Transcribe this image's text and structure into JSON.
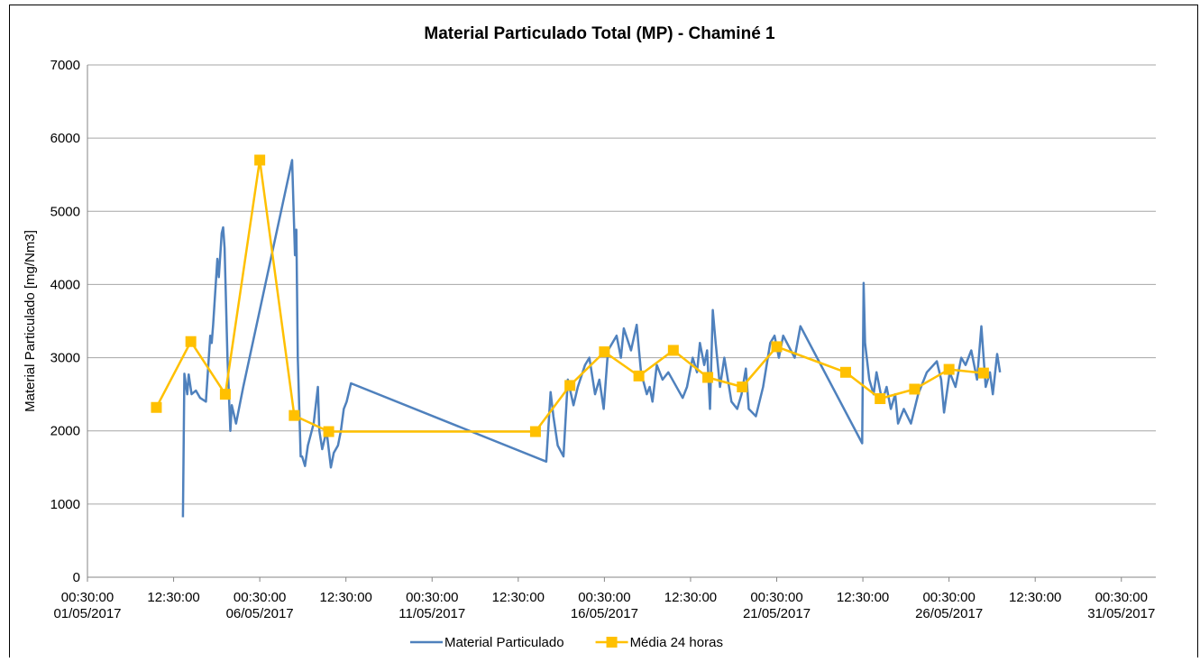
{
  "chart_data": {
    "type": "line",
    "title": "Material Particulado Total (MP) - Chaminé 1",
    "y_label": "Material Particulado [mg/Nm3]",
    "xlim": [
      "01/05/2017 00:30:00",
      "01/06/2017 00:30:00"
    ],
    "xticks": [
      {
        "value": "01/05/2017 00:30:00",
        "label": [
          "00:30:00",
          "01/05/2017"
        ]
      },
      {
        "value": "03/05/2017 12:30:00",
        "label": [
          "12:30:00"
        ]
      },
      {
        "value": "06/05/2017 00:30:00",
        "label": [
          "00:30:00",
          "06/05/2017"
        ]
      },
      {
        "value": "08/05/2017 12:30:00",
        "label": [
          "12:30:00"
        ]
      },
      {
        "value": "11/05/2017 00:30:00",
        "label": [
          "00:30:00",
          "11/05/2017"
        ]
      },
      {
        "value": "13/05/2017 12:30:00",
        "label": [
          "12:30:00"
        ]
      },
      {
        "value": "16/05/2017 00:30:00",
        "label": [
          "00:30:00",
          "16/05/2017"
        ]
      },
      {
        "value": "18/05/2017 12:30:00",
        "label": [
          "12:30:00"
        ]
      },
      {
        "value": "21/05/2017 00:30:00",
        "label": [
          "00:30:00",
          "21/05/2017"
        ]
      },
      {
        "value": "23/05/2017 12:30:00",
        "label": [
          "12:30:00"
        ]
      },
      {
        "value": "26/05/2017 00:30:00",
        "label": [
          "00:30:00",
          "26/05/2017"
        ]
      },
      {
        "value": "28/05/2017 12:30:00",
        "label": [
          "12:30:00"
        ]
      },
      {
        "value": "31/05/2017 00:30:00",
        "label": [
          "00:30:00",
          "31/05/2017"
        ]
      }
    ],
    "ylim": [
      0,
      7000
    ],
    "yticks": [
      0,
      1000,
      2000,
      3000,
      4000,
      5000,
      6000,
      7000
    ],
    "grid": true,
    "legend": "bottom",
    "series": [
      {
        "name": "Material Particulado",
        "color": "#4f81bd",
        "marker": "none",
        "x": [
          "03/05/2017 19:00:00",
          "03/05/2017 20:00:00",
          "03/05/2017 22:00:00",
          "03/05/2017 23:00:00",
          "04/05/2017 01:00:00",
          "04/05/2017 04:00:00",
          "04/05/2017 07:00:00",
          "04/05/2017 11:00:00",
          "04/05/2017 14:00:00",
          "04/05/2017 15:00:00",
          "04/05/2017 16:00:00",
          "04/05/2017 19:00:00",
          "04/05/2017 20:00:00",
          "04/05/2017 22:00:00",
          "04/05/2017 23:00:00",
          "05/05/2017 00:00:00",
          "05/05/2017 02:00:00",
          "05/05/2017 04:00:00",
          "05/05/2017 05:00:00",
          "05/05/2017 08:00:00",
          "05/05/2017 10:00:00",
          "05/05/2017 13:00:00",
          "06/05/2017 23:00:00",
          "07/05/2017 01:00:00",
          "07/05/2017 02:00:00",
          "07/05/2017 03:00:00",
          "07/05/2017 05:00:00",
          "07/05/2017 06:00:00",
          "07/05/2017 08:00:00",
          "07/05/2017 10:00:00",
          "07/05/2017 12:00:00",
          "07/05/2017 14:00:00",
          "07/05/2017 17:00:00",
          "07/05/2017 18:00:00",
          "07/05/2017 20:00:00",
          "07/05/2017 23:00:00",
          "08/05/2017 02:00:00",
          "08/05/2017 04:00:00",
          "08/05/2017 07:00:00",
          "08/05/2017 09:00:00",
          "08/05/2017 11:00:00",
          "08/05/2017 13:00:00",
          "08/05/2017 16:00:00",
          "14/05/2017 08:00:00",
          "14/05/2017 11:00:00",
          "14/05/2017 13:00:00",
          "14/05/2017 16:00:00",
          "14/05/2017 20:00:00",
          "14/05/2017 23:00:00",
          "15/05/2017 03:00:00",
          "15/05/2017 06:00:00",
          "15/05/2017 11:00:00",
          "15/05/2017 14:00:00",
          "15/05/2017 18:00:00",
          "15/05/2017 21:00:00",
          "16/05/2017 00:00:00",
          "16/05/2017 03:00:00",
          "16/05/2017 09:00:00",
          "16/05/2017 12:00:00",
          "16/05/2017 14:00:00",
          "16/05/2017 19:00:00",
          "16/05/2017 23:00:00",
          "17/05/2017 02:00:00",
          "17/05/2017 06:00:00",
          "17/05/2017 08:00:00",
          "17/05/2017 10:00:00",
          "17/05/2017 13:00:00",
          "17/05/2017 17:00:00",
          "17/05/2017 21:00:00",
          "18/05/2017 07:00:00",
          "18/05/2017 10:00:00",
          "18/05/2017 14:00:00",
          "18/05/2017 17:00:00",
          "18/05/2017 19:00:00",
          "18/05/2017 22:00:00",
          "19/05/2017 00:00:00",
          "19/05/2017 02:00:00",
          "19/05/2017 04:00:00",
          "19/05/2017 06:00:00",
          "19/05/2017 09:00:00",
          "19/05/2017 12:00:00",
          "19/05/2017 17:00:00",
          "19/05/2017 21:00:00",
          "20/05/2017 00:00:00",
          "20/05/2017 03:00:00",
          "20/05/2017 05:00:00",
          "20/05/2017 10:00:00",
          "20/05/2017 15:00:00",
          "20/05/2017 20:00:00",
          "20/05/2017 23:00:00",
          "21/05/2017 02:00:00",
          "21/05/2017 05:00:00",
          "21/05/2017 13:00:00",
          "21/05/2017 17:00:00",
          "23/05/2017 12:00:00",
          "23/05/2017 13:00:00",
          "23/05/2017 14:00:00",
          "23/05/2017 17:00:00",
          "23/05/2017 20:00:00",
          "23/05/2017 22:00:00",
          "24/05/2017 02:00:00",
          "24/05/2017 05:00:00",
          "24/05/2017 08:00:00",
          "24/05/2017 11:00:00",
          "24/05/2017 13:00:00",
          "24/05/2017 17:00:00",
          "24/05/2017 22:00:00",
          "25/05/2017 03:00:00",
          "25/05/2017 09:00:00",
          "25/05/2017 16:00:00",
          "25/05/2017 19:00:00",
          "25/05/2017 21:00:00",
          "26/05/2017 01:00:00",
          "26/05/2017 05:00:00",
          "26/05/2017 09:00:00",
          "26/05/2017 12:00:00",
          "26/05/2017 16:00:00",
          "26/05/2017 20:00:00",
          "26/05/2017 23:00:00",
          "27/05/2017 02:00:00",
          "27/05/2017 05:00:00",
          "27/05/2017 07:00:00",
          "27/05/2017 10:00:00",
          "27/05/2017 12:00:00"
        ],
        "values": [
          820,
          2780,
          2500,
          2770,
          2500,
          2550,
          2450,
          2400,
          3300,
          3200,
          3450,
          4350,
          4100,
          4700,
          4780,
          4500,
          3000,
          2000,
          2350,
          2100,
          2300,
          2600,
          5700,
          4400,
          4750,
          3000,
          1650,
          1650,
          1520,
          1800,
          1950,
          2100,
          2600,
          2000,
          1750,
          2000,
          1500,
          1700,
          1800,
          2000,
          2300,
          2400,
          2650,
          1580,
          2530,
          2200,
          1800,
          1650,
          2700,
          2350,
          2600,
          2900,
          3000,
          2500,
          2700,
          2300,
          3100,
          3300,
          3000,
          3400,
          3100,
          3450,
          2800,
          2500,
          2600,
          2400,
          2900,
          2700,
          2800,
          2450,
          2600,
          3000,
          2800,
          3200,
          2900,
          3100,
          2300,
          3650,
          3200,
          2600,
          3000,
          2400,
          2300,
          2500,
          2850,
          2300,
          2200,
          2600,
          3200,
          3300,
          3000,
          3300,
          3000,
          3430,
          1830,
          4020,
          3200,
          2700,
          2500,
          2800,
          2400,
          2600,
          2300,
          2500,
          2100,
          2300,
          2100,
          2500,
          2800,
          2950,
          2700,
          2250,
          2800,
          2600,
          3000,
          2900,
          3100,
          2700,
          3430,
          2600,
          2800,
          2500,
          3050,
          2800
        ]
      },
      {
        "name": "Média 24 horas",
        "color": "#ffc000",
        "marker": "square",
        "x": [
          "03/05/2017 00:30:00",
          "04/05/2017 00:30:00",
          "05/05/2017 00:30:00",
          "06/05/2017 00:30:00",
          "07/05/2017 00:30:00",
          "08/05/2017 00:30:00",
          "14/05/2017 00:30:00",
          "15/05/2017 00:30:00",
          "16/05/2017 00:30:00",
          "17/05/2017 00:30:00",
          "18/05/2017 00:30:00",
          "19/05/2017 00:30:00",
          "20/05/2017 00:30:00",
          "21/05/2017 00:30:00",
          "23/05/2017 00:30:00",
          "24/05/2017 00:30:00",
          "25/05/2017 00:30:00",
          "26/05/2017 00:30:00",
          "27/05/2017 00:30:00"
        ],
        "values": [
          2320,
          3220,
          2500,
          5700,
          2210,
          1990,
          1990,
          2620,
          3080,
          2750,
          3100,
          2730,
          2600,
          3150,
          2800,
          2440,
          2570,
          2840,
          2790
        ]
      }
    ]
  }
}
